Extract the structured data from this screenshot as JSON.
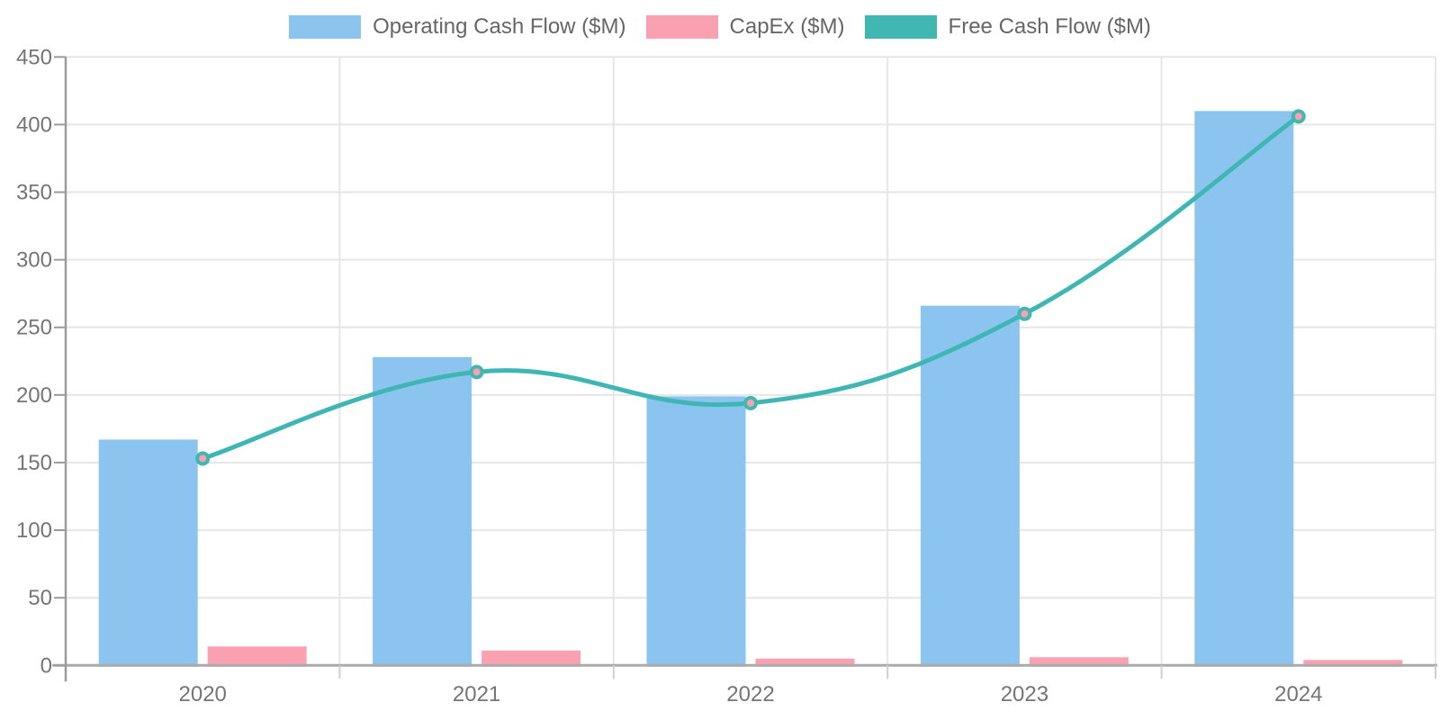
{
  "chart_data": {
    "type": "combo-bar-line",
    "title": "",
    "xlabel": "",
    "ylabel": "",
    "categories": [
      "2020",
      "2021",
      "2022",
      "2023",
      "2024"
    ],
    "series": [
      {
        "id": "operating-cash-flow",
        "name": "Operating Cash Flow ($M)",
        "type": "bar",
        "color": "#8AC4EF",
        "values": [
          167,
          228,
          199,
          266,
          410
        ]
      },
      {
        "id": "capex",
        "name": "CapEx ($M)",
        "type": "bar",
        "color": "#F9A1B1",
        "values": [
          14,
          11,
          5,
          6,
          4
        ]
      },
      {
        "id": "free-cash-flow",
        "name": "Free Cash Flow ($M)",
        "type": "line",
        "color": "#41B7B2",
        "line_color": "#3FB6B4",
        "point_fill": "#F9A1B1",
        "values": [
          153,
          217,
          194,
          260,
          406
        ]
      }
    ],
    "ylim": [
      0,
      450
    ],
    "y_step": 50,
    "y_tick_labels": [
      "0",
      "50",
      "100",
      "150",
      "200",
      "250",
      "300",
      "350",
      "400",
      "450"
    ],
    "grid": true,
    "legend_position": "top",
    "colors": {
      "axis_text": "#757575",
      "legend_text": "#666666",
      "gridline": "#E6E6E6",
      "x_axis_line": "#ABABAB",
      "y_axis_line": "#9B9B9B",
      "x_tick": "#CFCFCF"
    }
  }
}
